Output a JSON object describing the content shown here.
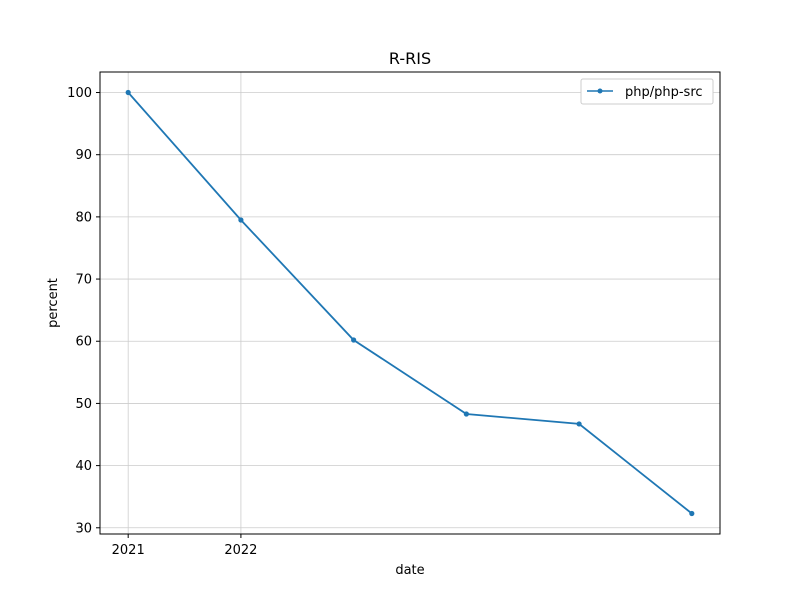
{
  "chart_data": {
    "type": "line",
    "title": "R-RIS",
    "xlabel": "date",
    "ylabel": "percent",
    "x": [
      2021,
      2022,
      2023,
      2024,
      2025,
      2026
    ],
    "x_tick_values": [
      2021,
      2022
    ],
    "x_tick_labels": [
      "2021",
      "2022"
    ],
    "y_ticks": [
      30,
      40,
      50,
      60,
      70,
      80,
      90,
      100
    ],
    "xlim": [
      2020.75,
      2026.25
    ],
    "ylim": [
      29,
      103.3
    ],
    "grid": true,
    "legend_position": "top-right",
    "series": [
      {
        "name": "php/php-src",
        "color": "#1f77b4",
        "values": [
          100,
          79.5,
          60.2,
          48.3,
          46.7,
          32.3
        ]
      }
    ]
  }
}
